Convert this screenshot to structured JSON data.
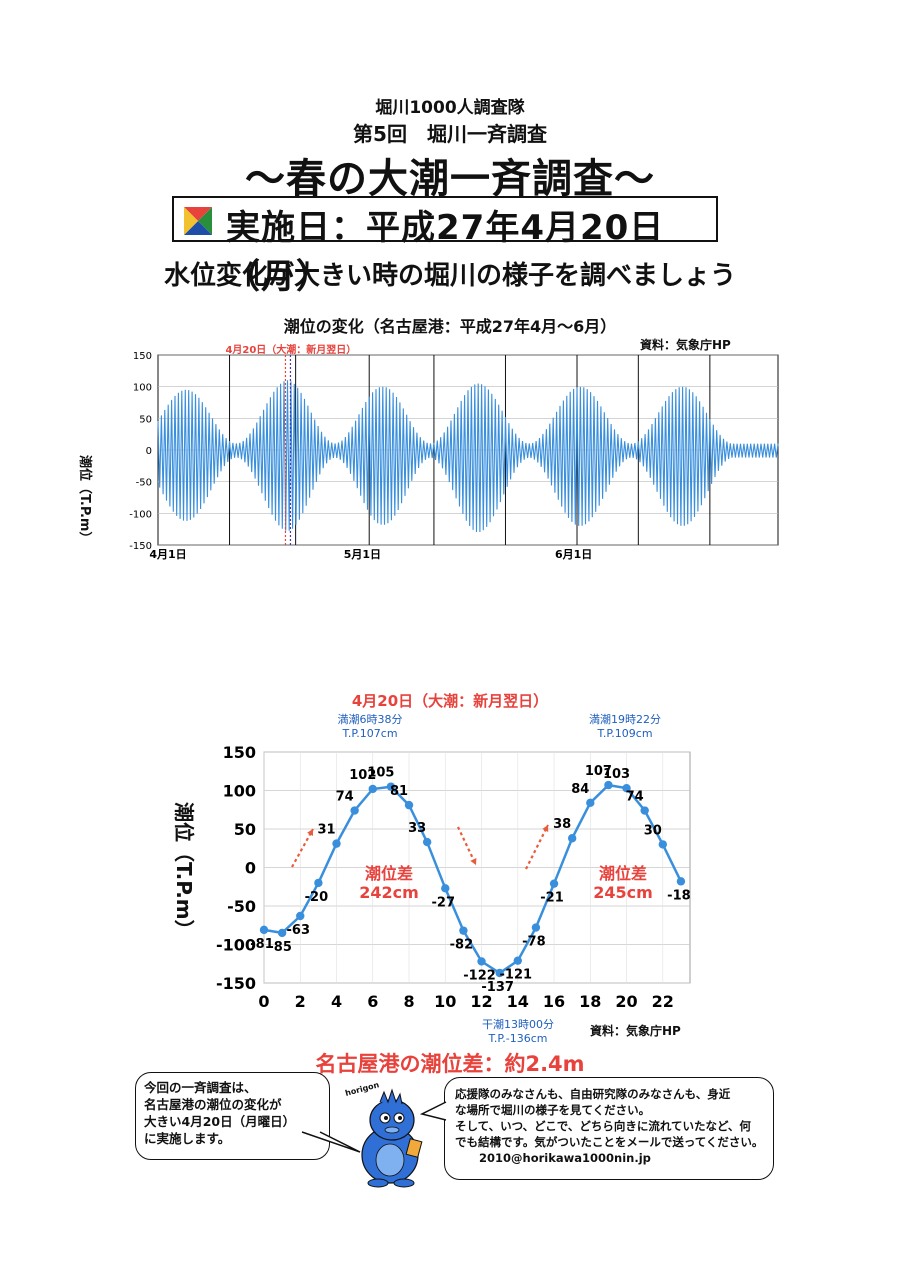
{
  "header": {
    "organization": "堀川1000人調査隊",
    "event": "第5回　堀川一斉調査",
    "title": "～春の大潮一斉調査～",
    "date": "実施日：平成27年4月20日（月）",
    "subtitle": "水位変化が大きい時の堀川の様子を調べましょう"
  },
  "colors": {
    "series": "#3a8fdc",
    "accent": "#e8423c",
    "label_blue": "#1f5fbf",
    "arrow": "#e85c3c"
  },
  "chart_data": [
    {
      "type": "line",
      "title": "潮位の変化（名古屋港：平成27年4月～6月）",
      "source": "資料：気象庁HP",
      "ylabel": "潮位（T.P.m）",
      "ylim": [
        -150,
        150
      ],
      "yticks": [
        150,
        100,
        50,
        0,
        -50,
        -100,
        -150
      ],
      "x_tick_labels": [
        "4月1日",
        "5月1日",
        "6月1日"
      ],
      "x_range_days": [
        "4月1日",
        "6月30日"
      ],
      "grid": true,
      "marker_label": "4月20日（大潮：新月翌日）",
      "marker_date": "4月20日",
      "series": [
        {
          "envelope_peak_dates": [
            "4月5日",
            "4月20日",
            "5月4日",
            "5月18日",
            "6月2日",
            "6月17日"
          ],
          "envelope_max": [
            95,
            110,
            100,
            105,
            100,
            100
          ],
          "envelope_min": [
            -112,
            -128,
            -118,
            -130,
            -120,
            -120
          ]
        }
      ]
    },
    {
      "type": "line",
      "title": "4月20日（大潮：新月翌日）",
      "source": "資料：気象庁HP",
      "ylabel": "潮位（T.P.m）",
      "ylim": [
        -150,
        150
      ],
      "yticks": [
        150,
        100,
        50,
        0,
        -50,
        -100,
        -150
      ],
      "xticks": [
        0,
        2,
        4,
        6,
        8,
        10,
        12,
        14,
        16,
        18,
        20,
        22
      ],
      "grid": true,
      "x": [
        0,
        1,
        2,
        3,
        4,
        5,
        6,
        7,
        8,
        9,
        10,
        11,
        12,
        13,
        14,
        15,
        16,
        17,
        18,
        19,
        20,
        21,
        22,
        23
      ],
      "values": [
        -81,
        -85,
        -63,
        -20,
        31,
        74,
        102,
        105,
        81,
        33,
        -27,
        -82,
        -122,
        -137,
        -121,
        -78,
        -21,
        38,
        84,
        107,
        103,
        74,
        30,
        -18
      ],
      "annotations": {
        "high1": {
          "line1": "満潮6時38分",
          "line2": "T.P.107cm"
        },
        "high2": {
          "line1": "満潮19時22分",
          "line2": "T.P.109cm"
        },
        "low": {
          "line1": "干潮13時00分",
          "line2": "T.P.-136cm"
        },
        "diff1": {
          "line1": "潮位差",
          "line2": "242cm"
        },
        "diff2": {
          "line1": "潮位差",
          "line2": "245cm"
        }
      }
    }
  ],
  "summary": "名古屋港の潮位差：約2.4m",
  "bubble_left": [
    "今回の一斉調査は、",
    "名古屋港の潮位の変化が",
    "大きい4月20日（月曜日）",
    "に実施します。"
  ],
  "bubble_right": [
    "応援隊のみなさんも、自由研究隊のみなさんも、身近",
    "な場所で堀川の様子を見てください。",
    "そして、いつ、どこで、どちら向きに流れていたなど、何",
    "でも結構です。気がついたことをメールで送ってください。",
    "2010@horikawa1000nin.jp"
  ],
  "mascot": {
    "name": "horigon"
  }
}
